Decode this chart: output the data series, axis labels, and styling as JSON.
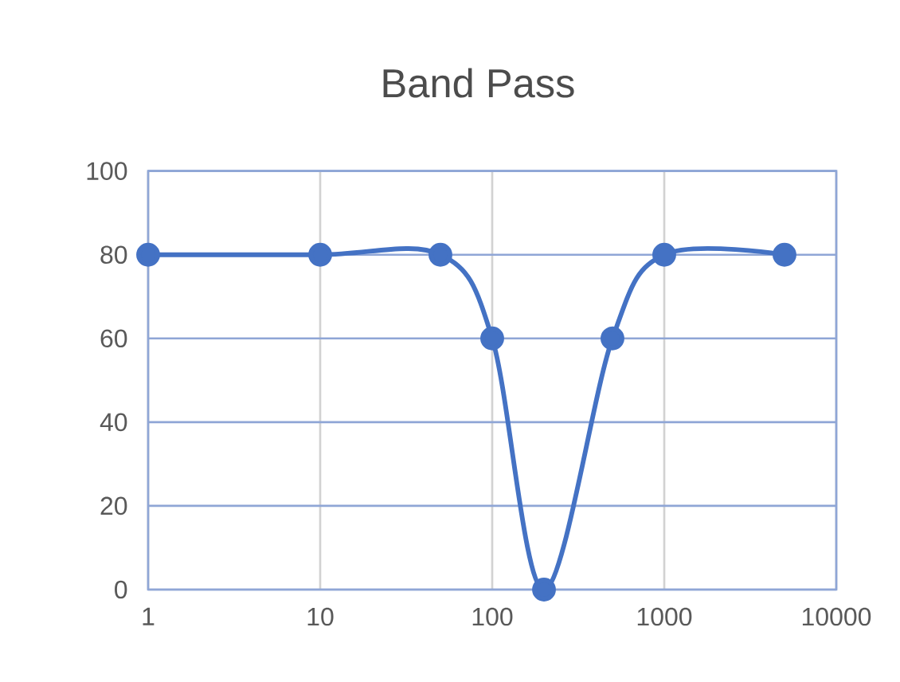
{
  "chart_data": {
    "type": "line",
    "title": "Band Pass",
    "x": [
      1,
      10,
      50,
      100,
      200,
      500,
      1000,
      5000
    ],
    "values": [
      80,
      80,
      80,
      60,
      0,
      60,
      80,
      80
    ],
    "color": "#4472c4",
    "marker": "circle",
    "line_style": "solid",
    "log": "x",
    "grid": true,
    "xlim": [
      1,
      10000
    ],
    "xticks": [
      1,
      10,
      100,
      1000,
      10000
    ],
    "ylim": [
      0,
      100
    ],
    "yticks": [
      0,
      20,
      40,
      60,
      80,
      100
    ]
  }
}
